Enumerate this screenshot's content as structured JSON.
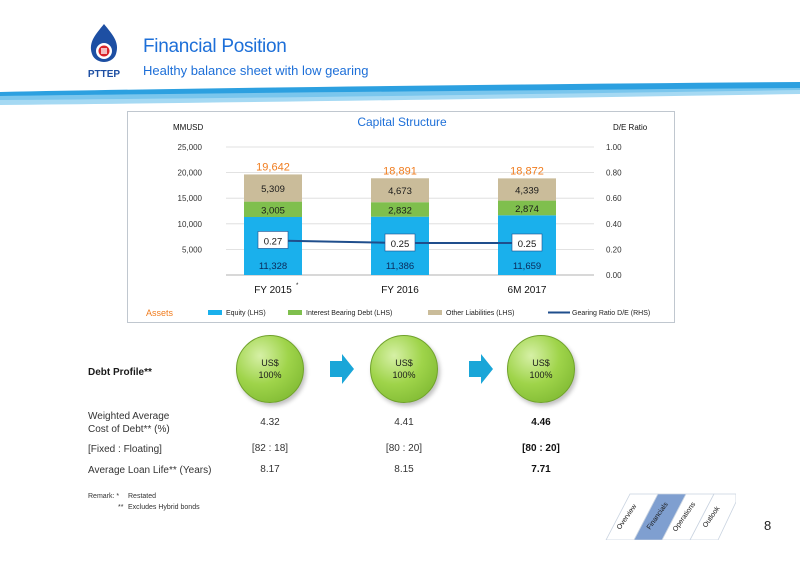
{
  "header": {
    "brand": "PTTEP",
    "title": "Financial Position",
    "subtitle": "Healthy balance sheet with low gearing"
  },
  "chart_data": {
    "type": "bar",
    "title": "Capital Structure",
    "ylabel": "MMUSD",
    "y2label": "D/E Ratio",
    "ylim": [
      0,
      25000
    ],
    "y2lim": [
      0,
      1.0
    ],
    "yticks": [
      "25,000",
      "20,000",
      "15,000",
      "10,000",
      "5,000"
    ],
    "y2ticks": [
      "1.00",
      "0.80",
      "0.60",
      "0.40",
      "0.20",
      "0.00"
    ],
    "categories": [
      "FY 2015*",
      "FY 2016",
      "6M 2017"
    ],
    "category_labels": [
      {
        "text": "FY 2015",
        "sup": "*"
      },
      {
        "text": "FY 2016",
        "sup": ""
      },
      {
        "text": "6M 2017",
        "sup": ""
      }
    ],
    "series": [
      {
        "name": "Equity (LHS)",
        "values": [
          11328,
          11386,
          11659
        ],
        "labels": [
          "11,328",
          "11,386",
          "11,659"
        ],
        "color": "#1ab0ec"
      },
      {
        "name": "Interest Bearing Debt (LHS)",
        "values": [
          3005,
          2832,
          2874
        ],
        "labels": [
          "3,005",
          "2,832",
          "2,874"
        ],
        "color": "#7fbf4d"
      },
      {
        "name": "Other Liabilities (LHS)",
        "values": [
          5309,
          4673,
          4339
        ],
        "labels": [
          "5,309",
          "4,673",
          "4,339"
        ],
        "color": "#cabc9a"
      }
    ],
    "totals": [
      "19,642",
      "18,891",
      "18,872"
    ],
    "line": {
      "name": "Gearing Ratio D/E (RHS)",
      "values": [
        0.27,
        0.25,
        0.25
      ],
      "labels": [
        "0.27",
        "0.25",
        "0.25"
      ],
      "color": "#1f4e8c"
    },
    "legend_lead": "Assets",
    "legend_position": "bottom",
    "grid": true,
    "total_color": "#f07c1e"
  },
  "debt": {
    "label": "Debt Profile**",
    "circles": [
      {
        "line1": "US$",
        "line2": "100%"
      },
      {
        "line1": "US$",
        "line2": "100%"
      },
      {
        "line1": "US$",
        "line2": "100%"
      }
    ],
    "rows": [
      {
        "label1": "Weighted Average",
        "label2": "Cost of Debt** (%)",
        "values": [
          "4.32",
          "4.41",
          "4.46"
        ]
      },
      {
        "label1": "[Fixed : Floating]",
        "label2": "",
        "values": [
          "[82 : 18]",
          "[80 : 20]",
          "[80 : 20]"
        ]
      },
      {
        "label1": "Average Loan Life** (Years)",
        "label2": "",
        "values": [
          "8.17",
          "8.15",
          "7.71"
        ]
      }
    ]
  },
  "remarks": {
    "lead": "Remark: *",
    "line1": "Restated",
    "mark2": "**",
    "line2": "Excludes Hybrid bonds"
  },
  "nav": [
    "Overview",
    "Financials",
    "Operations",
    "Outlook"
  ],
  "page_number": "8",
  "colors": {
    "accent_blue": "#1d6fd8",
    "arrow": "#1aa6d8",
    "active_nav": "#7f9fd0"
  }
}
